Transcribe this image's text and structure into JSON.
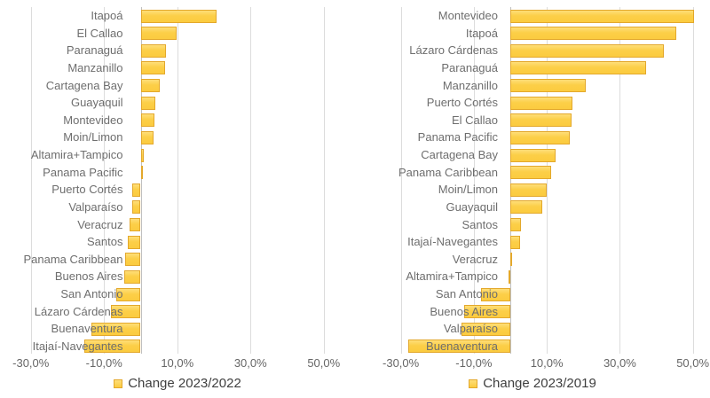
{
  "figure": {
    "title": "",
    "background": "#ffffff"
  },
  "colors": {
    "bar_fill": "#fccf48",
    "bar_fill_light": "#fede79",
    "bar_border": "#e3a82c",
    "gridline": "#dcdcdc",
    "zero_axis": "#bfbfbf",
    "category_text": "#6e6e6e",
    "tick_text": "#666666",
    "legend_text": "#3f3f3f"
  },
  "chart_data": [
    {
      "type": "bar",
      "orientation": "horizontal",
      "title": "",
      "legend": "Change 2023/2022",
      "legend_position": "bottom",
      "grid": true,
      "xlim": [
        -33,
        55
      ],
      "x_tick_values": [
        -30,
        -10,
        10,
        30,
        50
      ],
      "x_tick_labels": [
        "-30,0%",
        "-10,0%",
        "10,0%",
        "30,0%",
        "50,0%"
      ],
      "value_unit": "percent",
      "categories": [
        "Itapoá",
        "El Callao",
        "Paranaguá",
        "Manzanillo",
        "Cartagena Bay",
        "Guayaquil",
        "Montevideo",
        "Moin/Limon",
        "Altamira+Tampico",
        "Panama Pacific",
        "Puerto Cortés",
        "Valparaíso",
        "Veracruz",
        "Santos",
        "Panama Caribbean",
        "Buenos Aires",
        "San Antonio",
        "Lázaro Cárdenas",
        "Buenaventura",
        "Itajaí-Navegantes"
      ],
      "values": [
        20.8,
        9.9,
        6.9,
        6.7,
        5.2,
        3.9,
        3.7,
        3.6,
        0.9,
        0.7,
        -2.2,
        -2.4,
        -3.1,
        -3.6,
        -4.2,
        -4.4,
        -6.7,
        -8.1,
        -13.4,
        -15.3
      ]
    },
    {
      "type": "bar",
      "orientation": "horizontal",
      "title": "",
      "legend": "Change 2023/2019",
      "legend_position": "bottom",
      "grid": true,
      "xlim": [
        -33,
        55
      ],
      "x_tick_values": [
        -30,
        -10,
        10,
        30,
        50
      ],
      "x_tick_labels": [
        "-30,0%",
        "-10,0%",
        "10,0%",
        "30,0%",
        "50,0%"
      ],
      "value_unit": "percent",
      "categories": [
        "Montevideo",
        "Itapoá",
        "Lázaro Cárdenas",
        "Paranaguá",
        "Manzanillo",
        "Puerto Cortés",
        "El Callao",
        "Panama Pacific",
        "Cartagena Bay",
        "Panama Caribbean",
        "Moin/Limon",
        "Guayaquil",
        "Santos",
        "Itajaí-Navegantes",
        "Veracruz",
        "Altamira+Tampico",
        "San Antonio",
        "Buenos Aires",
        "Valparaíso",
        "Buenaventura"
      ],
      "values": [
        50.3,
        45.5,
        42.0,
        37.3,
        20.7,
        17.0,
        16.8,
        16.2,
        12.4,
        11.1,
        9.9,
        8.7,
        2.8,
        2.6,
        0.5,
        -0.4,
        -8.1,
        -12.7,
        -13.4,
        -28.0
      ]
    }
  ]
}
